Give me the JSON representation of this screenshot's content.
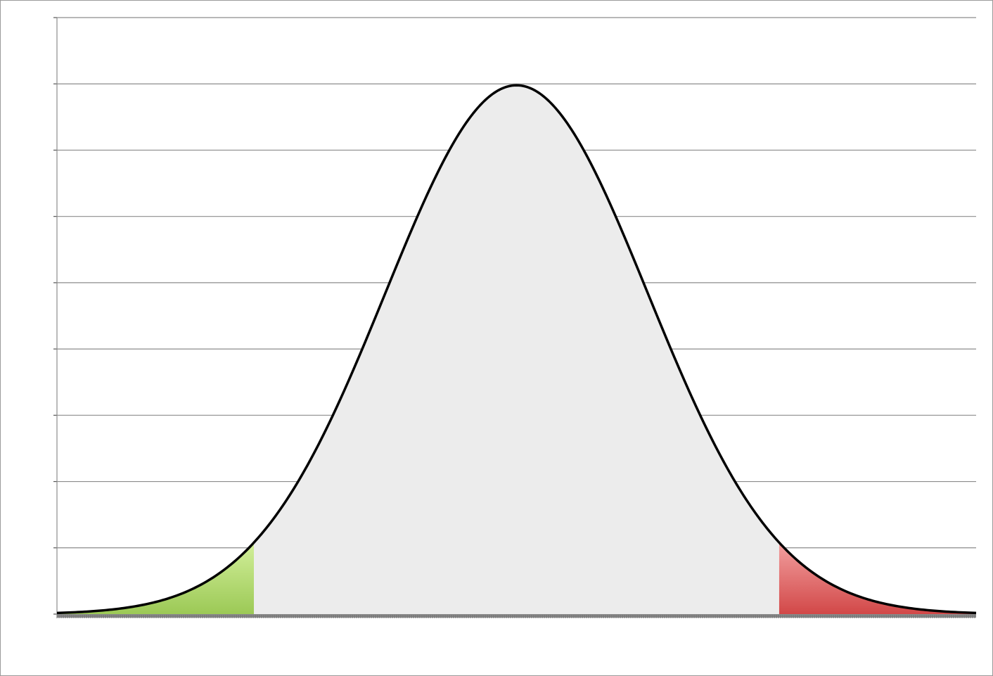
{
  "chart_data": {
    "type": "area",
    "title": "",
    "xlabel": "",
    "ylabel": "",
    "x_range": [
      -3.5,
      3.5
    ],
    "y_range": [
      0,
      0.45
    ],
    "y_gridlines": [
      0,
      0.05,
      0.1,
      0.15,
      0.2,
      0.25,
      0.3,
      0.35,
      0.4,
      0.45
    ],
    "grid": true,
    "legend": "none",
    "series": [
      {
        "type": "normal-density",
        "mean": 0,
        "std": 1,
        "peak_value": 0.3989,
        "line_color": "#000000"
      }
    ],
    "shaded_regions": [
      {
        "from": -3.5,
        "to": -2.0,
        "color_top": "#d2ef9a",
        "color_bottom": "#9cc956"
      },
      {
        "from": -2.0,
        "to": 2.0,
        "color": "#ececec"
      },
      {
        "from": 2.0,
        "to": 3.5,
        "color_top": "#f2a0a0",
        "color_bottom": "#d24848"
      }
    ]
  }
}
